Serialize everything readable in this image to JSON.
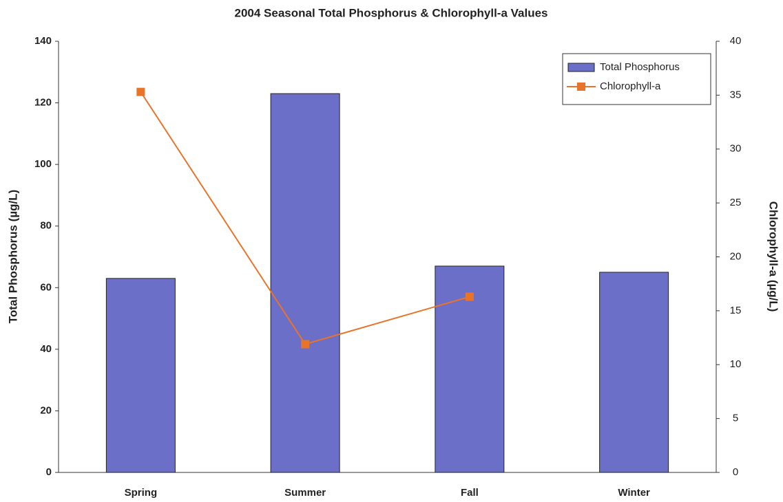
{
  "chart_data": {
    "type": "bar",
    "title": "2004 Seasonal Total Phosphorus & Chlorophyll-a Values",
    "y_label": "Total Phosphorus (µg/L)",
    "y2_label": "Chlorophyll-a (µg/L)",
    "categories": [
      "Spring",
      "Summer",
      "Fall",
      "Winter"
    ],
    "series": [
      {
        "name": "Total Phosphorus",
        "type": "bar",
        "color": "#6b6fc8",
        "values": [
          63,
          123,
          67,
          65
        ]
      },
      {
        "name": "Chlorophyll-a",
        "type": "line",
        "axis": "y2",
        "color": "#e8742a",
        "values": [
          35.3,
          11.9,
          16.3,
          null
        ]
      }
    ],
    "ylim": [
      0,
      140
    ],
    "yticks": [
      0,
      20,
      40,
      60,
      80,
      100,
      120,
      140
    ],
    "y2lim": [
      0,
      40
    ],
    "y2ticks": [
      0,
      5,
      10,
      15,
      20,
      25,
      30,
      35,
      40
    ],
    "legend": "top-right",
    "grid": false
  }
}
